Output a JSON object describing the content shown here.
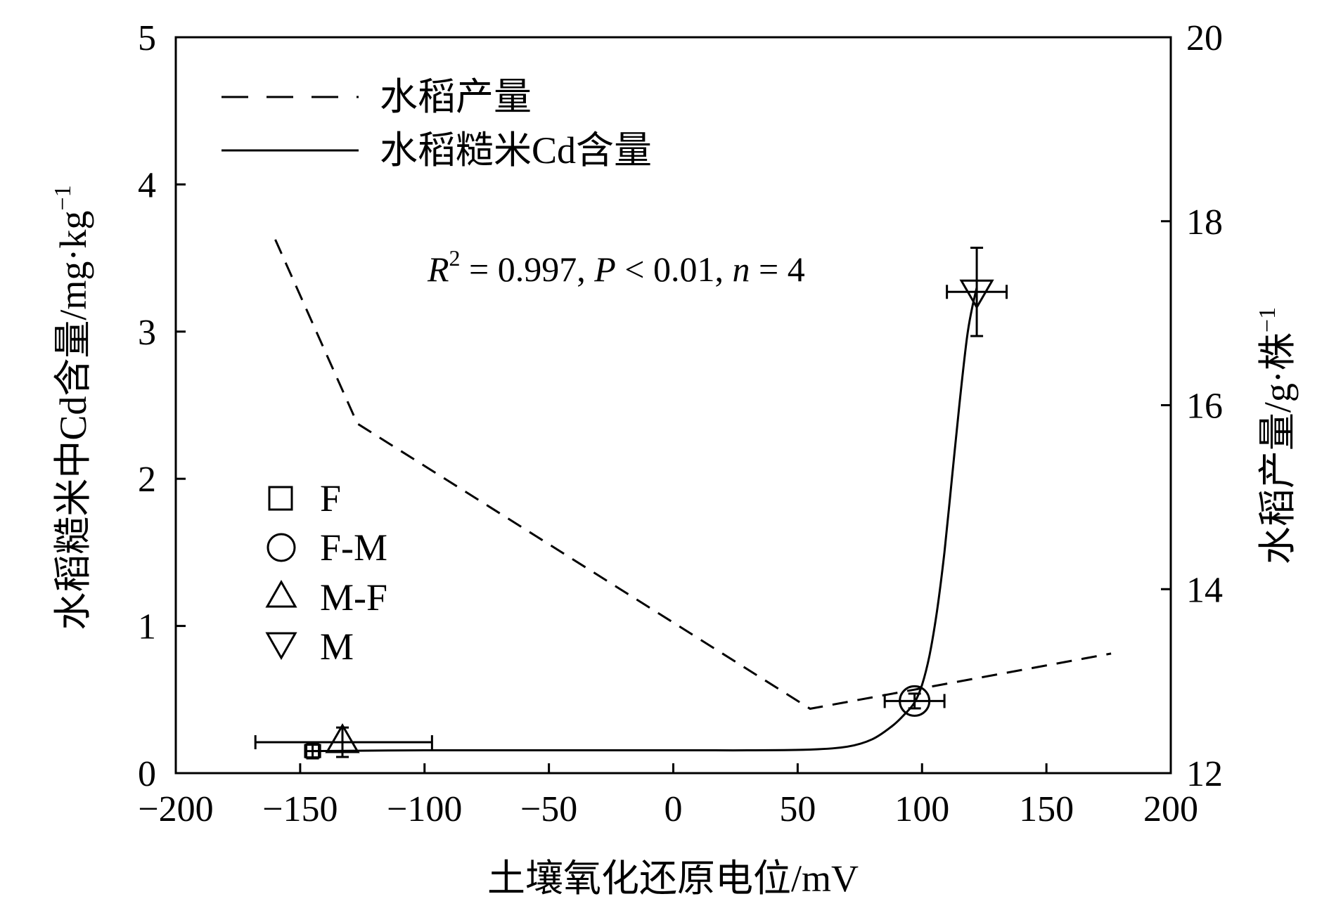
{
  "chart_data": {
    "type": "line",
    "xlabel": "土壤氧化还原电位/mV",
    "ylabel_left": "水稻糙米中Cd含量/mg·kg",
    "ylabel_left_sup": "−1",
    "ylabel_right": "水稻产量/g·株",
    "ylabel_right_sup": "−1",
    "xlim": [
      -200,
      200
    ],
    "ylim_left": [
      0,
      5
    ],
    "ylim_right": [
      12,
      20
    ],
    "x_ticks": [
      -200,
      -150,
      -100,
      -50,
      0,
      50,
      100,
      150,
      200
    ],
    "x_tick_labels": [
      "−200",
      "−150",
      "−100",
      "−50",
      "0",
      "50",
      "100",
      "150",
      "200"
    ],
    "y_left_ticks": [
      0,
      1,
      2,
      3,
      4,
      5
    ],
    "y_left_tick_labels": [
      "0",
      "1",
      "2",
      "3",
      "4",
      "5"
    ],
    "y_right_ticks": [
      12,
      14,
      16,
      18,
      20
    ],
    "y_right_tick_labels": [
      "12",
      "14",
      "16",
      "18",
      "20"
    ],
    "annotation": {
      "R": "R",
      "R_sup": "2",
      "mid": " = 0.997, ",
      "P": "P",
      "mid2": " < 0.01, ",
      "n": "n",
      "end": " = 4"
    },
    "legend_lines": [
      {
        "label": "水稻产量",
        "style": "dashed"
      },
      {
        "label": "水稻糙米Cd含量",
        "style": "solid"
      }
    ],
    "legend_markers": [
      {
        "label": "F",
        "marker": "square"
      },
      {
        "label": "F-M",
        "marker": "circle"
      },
      {
        "label": "M-F",
        "marker": "triangle-up"
      },
      {
        "label": "M",
        "marker": "triangle-down"
      }
    ],
    "series": [
      {
        "name": "水稻产量",
        "axis": "right",
        "style": "dashed",
        "x": [
          -160,
          -127,
          55,
          176
        ],
        "y": [
          17.8,
          15.8,
          12.7,
          13.3
        ]
      },
      {
        "name": "水稻糙米Cd含量",
        "axis": "left",
        "style": "solid",
        "x": [
          -145,
          -100,
          -50,
          0,
          30,
          55,
          70,
          80,
          88,
          93,
          97,
          100,
          103,
          106,
          109,
          112,
          115,
          118,
          120,
          122
        ],
        "y": [
          0.15,
          0.155,
          0.155,
          0.155,
          0.155,
          0.16,
          0.18,
          0.23,
          0.32,
          0.4,
          0.48,
          0.6,
          0.8,
          1.1,
          1.5,
          2.0,
          2.5,
          2.95,
          3.15,
          3.3
        ]
      }
    ],
    "points": [
      {
        "label": "F",
        "marker": "square",
        "x": -145,
        "y": 0.15,
        "xerr": [
          3,
          3
        ],
        "yerr": [
          0.05,
          0.05
        ]
      },
      {
        "label": "F-M",
        "marker": "circle",
        "x": 97,
        "y": 0.49,
        "xerr": [
          12,
          12
        ],
        "yerr": [
          0.05,
          0.05
        ]
      },
      {
        "label": "M-F",
        "marker": "triangle-up",
        "x": -133,
        "y": 0.21,
        "xerr": [
          35,
          36
        ],
        "yerr": [
          0.1,
          0.1
        ]
      },
      {
        "label": "M",
        "marker": "triangle-down",
        "x": 122,
        "y": 3.27,
        "xerr": [
          12,
          12
        ],
        "yerr": [
          0.3,
          0.3
        ]
      }
    ]
  }
}
